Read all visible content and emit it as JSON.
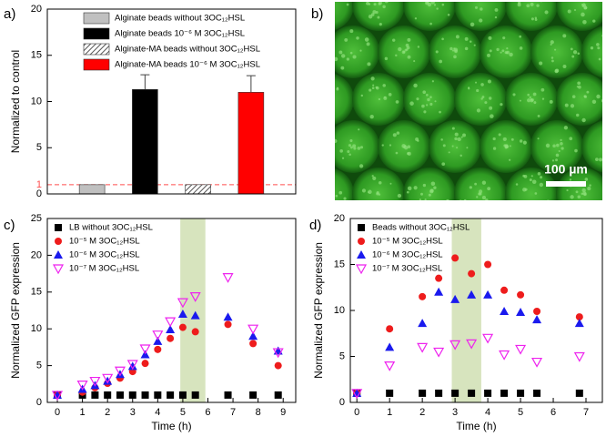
{
  "chart_data": [
    {
      "type": "bar",
      "panel_label": "a)",
      "ylabel": "Normalized to control",
      "categories": [
        "Alginate beads without 3OC₁₂HSL",
        "Alginate beads 10⁻⁶ M 3OC₁₂HSL",
        "Alginate-MA beads without 3OC₁₂HSL",
        "Alginate-MA beads 10⁻⁶ M 3OC₁₂HSL"
      ],
      "values": [
        1,
        11.3,
        1,
        11
      ],
      "errors": [
        null,
        1.6,
        null,
        1.8
      ],
      "colors": [
        "#c0c0c0",
        "#000000",
        "#ffffff",
        "#ff0000"
      ],
      "hatched": [
        false,
        false,
        true,
        false
      ],
      "reference_line": {
        "value": 1,
        "color": "#ff4d4d"
      },
      "ylim": [
        0,
        20
      ],
      "yticks": [
        0,
        5,
        10,
        15,
        20
      ]
    },
    {
      "type": "scatter",
      "panel_label": "c)",
      "xlabel": "Time (h)",
      "ylabel": "Normalized GFP expression",
      "x": [
        0,
        1,
        1.5,
        2,
        2.5,
        3,
        3.5,
        4,
        4.5,
        5,
        5.5,
        6.8,
        7.8,
        8.8
      ],
      "highlight": [
        4.9,
        5.9
      ],
      "highlight_color": "#d7e4be",
      "series": [
        {
          "name": "LB without 3OC₁₂HSL",
          "color": "#000000",
          "marker": "square",
          "values": [
            1,
            1,
            1,
            1,
            1,
            1,
            1,
            1,
            1,
            1,
            1,
            1,
            1,
            1
          ]
        },
        {
          "name": "10⁻⁵ M 3OC₁₂HSL",
          "color": "#ee1c1c",
          "marker": "circle",
          "values": [
            1,
            1.4,
            2,
            2.6,
            3.3,
            4.2,
            5.3,
            7.2,
            8.7,
            10.2,
            9.6,
            10.6,
            8,
            5
          ]
        },
        {
          "name": "10⁻⁶ M 3OC₁₂HSL",
          "color": "#1a1aee",
          "marker": "triangle",
          "values": [
            1,
            1.8,
            2.3,
            2.9,
            3.8,
            4.9,
            6.5,
            8.3,
            9.9,
            12,
            11.8,
            11.6,
            9,
            7
          ]
        },
        {
          "name": "10⁻⁷ M 3OC₁₂HSL",
          "color": "#ee22ee",
          "marker": "triangle-down-open",
          "values": [
            1,
            2.4,
            2.9,
            3.3,
            4.3,
            5.2,
            7.3,
            9.2,
            11,
            13.6,
            14.4,
            17,
            10,
            6.8
          ]
        }
      ],
      "xlim": [
        -0.4,
        9.5
      ],
      "xticks": [
        0,
        1,
        2,
        3,
        4,
        5,
        6,
        7,
        8,
        9
      ],
      "ylim": [
        0,
        25
      ],
      "yticks": [
        0,
        5,
        10,
        15,
        20,
        25
      ]
    },
    {
      "type": "scatter",
      "panel_label": "d)",
      "xlabel": "Time (h)",
      "ylabel": "Normalized GFP expression",
      "x": [
        0,
        1,
        2,
        2.5,
        3,
        3.5,
        4,
        4.5,
        5,
        5.5,
        6.8
      ],
      "highlight": [
        2.9,
        3.8
      ],
      "highlight_color": "#d7e4be",
      "series": [
        {
          "name": "Beads without 3OC₁₂HSL",
          "color": "#000000",
          "marker": "square",
          "values": [
            1,
            1,
            1,
            1,
            1,
            1,
            1,
            1,
            1,
            1,
            1
          ]
        },
        {
          "name": "10⁻⁵ M 3OC₁₂HSL",
          "color": "#ee1c1c",
          "marker": "circle",
          "values": [
            1,
            8,
            11.5,
            13.5,
            15.7,
            14,
            15,
            12.2,
            11.7,
            9.9,
            9.3
          ]
        },
        {
          "name": "10⁻⁶ M 3OC₁₂HSL",
          "color": "#1a1aee",
          "marker": "triangle",
          "values": [
            1,
            6,
            8.6,
            12,
            11.2,
            11.7,
            11.7,
            9.9,
            9.8,
            9,
            8.6
          ]
        },
        {
          "name": "10⁻⁷ M 3OC₁₂HSL",
          "color": "#ee22ee",
          "marker": "triangle-down-open",
          "values": [
            1,
            4,
            6,
            5.5,
            6.3,
            6.4,
            7,
            5.2,
            5.8,
            4.4,
            5
          ]
        }
      ],
      "xlim": [
        -0.2,
        7.5
      ],
      "xticks": [
        0,
        1,
        2,
        3,
        4,
        5,
        6,
        7
      ],
      "ylim": [
        0,
        20
      ],
      "yticks": [
        0,
        5,
        10,
        15,
        20
      ]
    }
  ],
  "image": {
    "panel_label": "b)",
    "scale_bar": "100 µm"
  }
}
